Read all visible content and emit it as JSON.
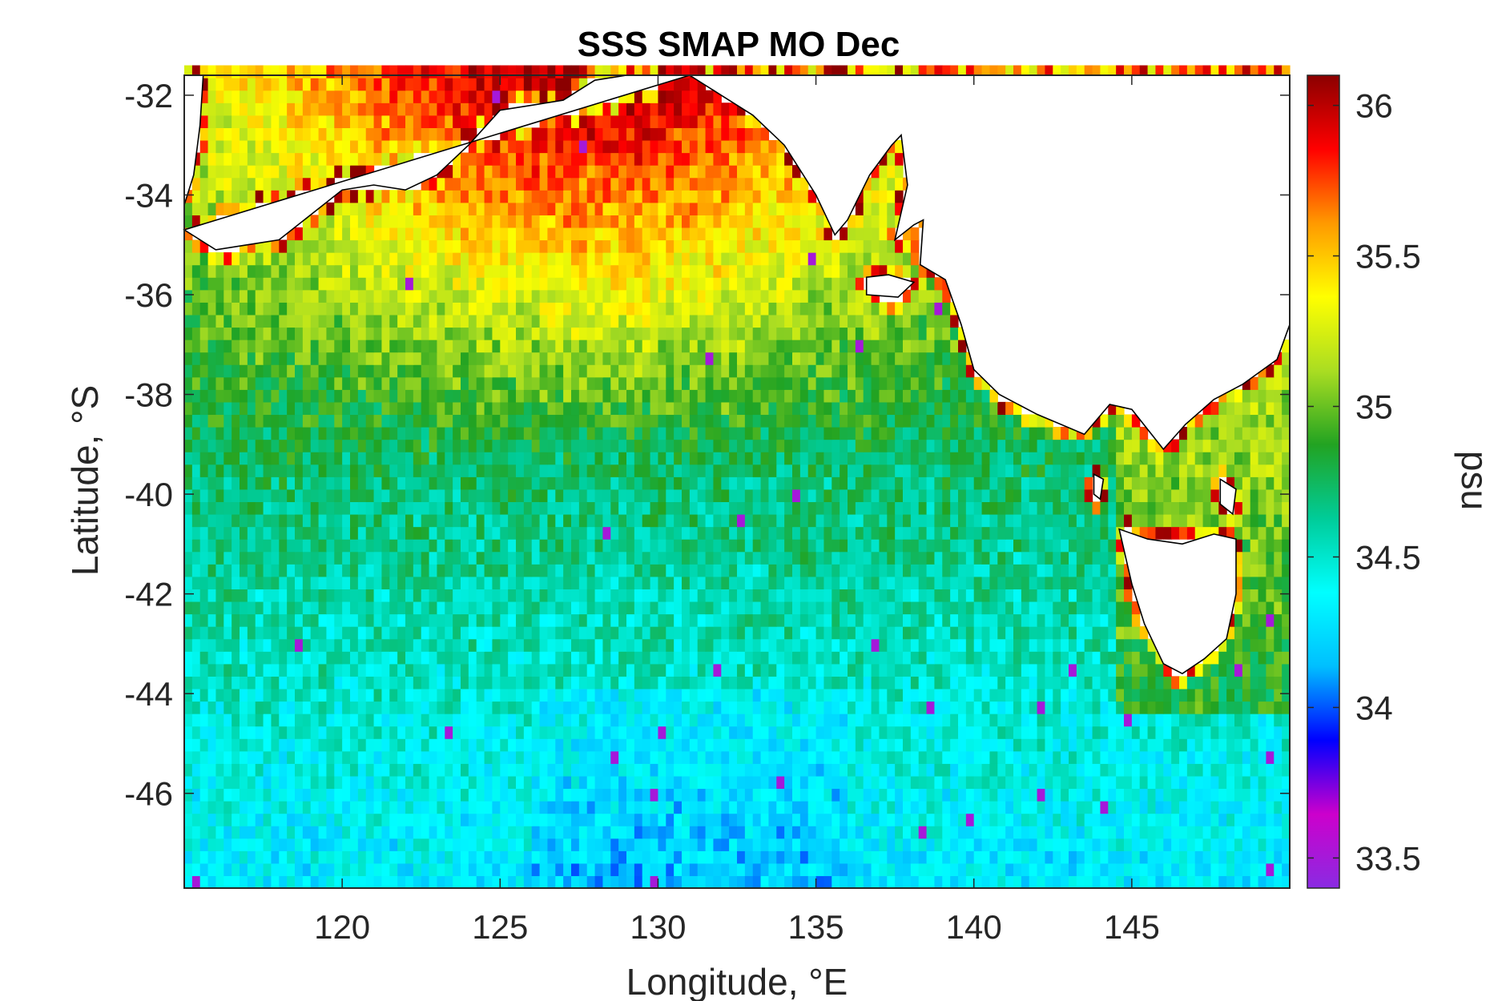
{
  "chart_data": {
    "type": "heatmap",
    "title": "SSS SMAP MO Dec",
    "xlabel": "Longitude, °E",
    "ylabel": "Latitude, °S",
    "colorbar_label": "psu",
    "xlim": [
      115,
      150
    ],
    "ylim": [
      -47.9,
      -31.6
    ],
    "clim": [
      33.4,
      36.1
    ],
    "x_ticks": [
      120,
      125,
      130,
      135,
      140,
      145
    ],
    "y_ticks": [
      -32,
      -34,
      -36,
      -38,
      -40,
      -42,
      -44,
      -46
    ],
    "colorbar_ticks": [
      33.5,
      34,
      34.5,
      35,
      35.5,
      36
    ],
    "grid_resolution_deg": 0.25,
    "colormap": [
      "#8a2be2",
      "#cc00cc",
      "#0000ff",
      "#00bfff",
      "#00ffff",
      "#00cc99",
      "#22a322",
      "#aadd22",
      "#ffff00",
      "#ff9900",
      "#ff0000",
      "#8b0000"
    ],
    "salinity_structure": {
      "open_ocean_south_psu": 34.3,
      "bight_shelf_psu": 34.9,
      "coastal_max_psu": 36.1,
      "minimum_psu": 33.5
    },
    "land_outline_color": "#000000",
    "missing_color": "#ffffff"
  }
}
